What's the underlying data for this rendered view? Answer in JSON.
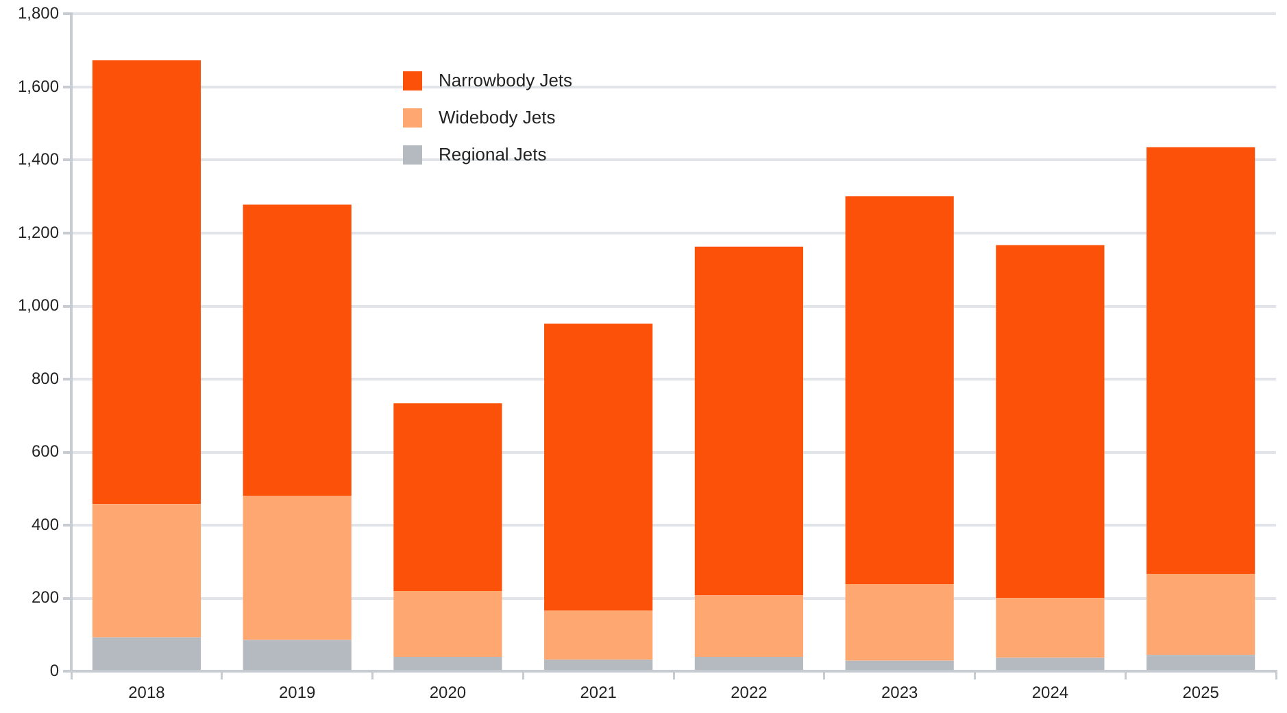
{
  "chart_data": {
    "type": "bar",
    "stacked": true,
    "categories": [
      "2018",
      "2019",
      "2020",
      "2021",
      "2022",
      "2023",
      "2024",
      "2025"
    ],
    "series": [
      {
        "name": "Regional Jets",
        "color": "#b5bac1",
        "values": [
          93,
          86,
          40,
          32,
          40,
          29,
          37,
          45
        ]
      },
      {
        "name": "Widebody Jets",
        "color": "#ffa770",
        "values": [
          365,
          395,
          180,
          134,
          168,
          210,
          164,
          221
        ]
      },
      {
        "name": "Narrowbody Jets",
        "color": "#fc5109",
        "values": [
          1215,
          797,
          514,
          786,
          955,
          1062,
          966,
          1169
        ]
      }
    ],
    "ylim": [
      0,
      1800
    ],
    "yticks": [
      {
        "value": 0,
        "label": "0"
      },
      {
        "value": 200,
        "label": "200"
      },
      {
        "value": 400,
        "label": "400"
      },
      {
        "value": 600,
        "label": "600"
      },
      {
        "value": 800,
        "label": "800"
      },
      {
        "value": 1000,
        "label": "1,000"
      },
      {
        "value": 1200,
        "label": "1,200"
      },
      {
        "value": 1400,
        "label": "1,400"
      },
      {
        "value": 1600,
        "label": "1,600"
      },
      {
        "value": 1800,
        "label": "1,800"
      }
    ],
    "grid": "y",
    "legend": "top left"
  }
}
